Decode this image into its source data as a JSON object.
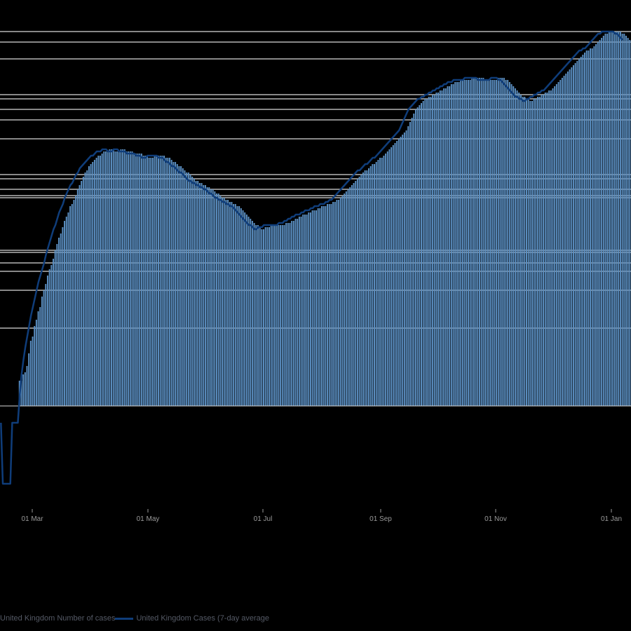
{
  "chart_data": {
    "type": "bar",
    "title": "",
    "xlabel": "",
    "ylabel": "",
    "x_ticks": [
      "01 Mar",
      "01 May",
      "01 Jul",
      "01 Sep",
      "01 Nov",
      "01 Jan"
    ],
    "bar_color": "#5b8fc2",
    "line_color": "#0f3d7a",
    "grid_color": "#d9d9d9",
    "series": [
      {
        "name": "United Kingdom Number of cases",
        "type": "bar",
        "values": [
          0,
          0,
          0,
          0,
          0,
          0,
          0,
          0,
          0,
          0,
          12,
          12,
          15,
          16,
          19,
          25,
          31,
          33,
          38,
          41,
          45,
          47,
          52,
          55,
          58,
          62,
          65,
          67,
          70,
          74,
          77,
          80,
          82,
          85,
          88,
          90,
          92,
          95,
          96,
          98,
          100,
          103,
          105,
          107,
          109,
          111,
          112,
          114,
          115,
          116,
          117,
          118,
          119,
          119,
          120,
          121,
          121,
          121,
          122,
          122,
          122,
          121,
          121,
          121,
          122,
          122,
          122,
          121,
          121,
          121,
          121,
          120,
          120,
          120,
          120,
          120,
          119,
          119,
          119,
          118,
          118,
          118,
          119,
          119,
          119,
          119,
          119,
          119,
          118,
          118,
          118,
          117,
          116,
          116,
          115,
          114,
          114,
          113,
          112,
          111,
          111,
          110,
          109,
          108,
          107,
          107,
          106,
          106,
          105,
          105,
          104,
          104,
          103,
          103,
          102,
          101,
          101,
          100,
          99,
          99,
          98,
          98,
          97,
          97,
          96,
          96,
          95,
          95,
          94,
          93,
          92,
          91,
          90,
          89,
          88,
          87,
          86,
          86,
          85,
          84,
          84,
          85,
          85,
          85,
          86,
          86,
          86,
          86,
          86,
          86,
          86,
          86,
          87,
          87,
          87,
          88,
          88,
          89,
          89,
          90,
          90,
          91,
          91,
          91,
          92,
          92,
          93,
          93,
          93,
          94,
          94,
          95,
          95,
          95,
          96,
          96,
          96,
          97,
          97,
          98,
          98,
          99,
          100,
          101,
          102,
          103,
          104,
          105,
          106,
          107,
          108,
          109,
          110,
          111,
          112,
          112,
          113,
          114,
          115,
          115,
          116,
          117,
          118,
          118,
          119,
          120,
          121,
          122,
          123,
          124,
          125,
          126,
          127,
          128,
          129,
          130,
          131,
          133,
          135,
          137,
          139,
          141,
          142,
          143,
          144,
          145,
          146,
          146,
          147,
          147,
          148,
          148,
          149,
          149,
          150,
          150,
          151,
          151,
          152,
          152,
          153,
          153,
          154,
          154,
          154,
          155,
          155,
          155,
          155,
          155,
          155,
          156,
          156,
          156,
          156,
          156,
          156,
          156,
          155,
          155,
          155,
          155,
          155,
          155,
          155,
          156,
          156,
          156,
          156,
          155,
          155,
          154,
          153,
          152,
          151,
          150,
          149,
          148,
          147,
          147,
          146,
          146,
          145,
          145,
          146,
          146,
          147,
          147,
          148,
          148,
          149,
          149,
          150,
          150,
          151,
          152,
          153,
          154,
          155,
          156,
          157,
          158,
          159,
          160,
          161,
          162,
          163,
          164,
          165,
          166,
          167,
          168,
          169,
          169,
          170,
          170,
          171,
          172,
          173,
          174,
          175,
          176,
          177,
          177,
          178,
          178,
          178,
          178,
          178,
          178,
          178,
          177,
          177,
          176,
          175,
          174
        ]
      },
      {
        "name": "United Kingdom Cases (7-day average",
        "type": "line",
        "values": [
          -8,
          -37,
          -37,
          -37,
          -37,
          -37,
          -8,
          -8,
          -8,
          -8,
          5,
          15,
          22,
          28,
          33,
          38,
          43,
          47,
          51,
          55,
          59,
          62,
          65,
          68,
          72,
          75,
          78,
          81,
          84,
          86,
          89,
          92,
          94,
          96,
          99,
          101,
          103,
          105,
          106,
          108,
          110,
          111,
          113,
          114,
          115,
          116,
          117,
          118,
          119,
          119,
          120,
          121,
          121,
          121,
          122,
          122,
          122,
          121,
          121,
          121,
          122,
          122,
          122,
          121,
          121,
          121,
          121,
          120,
          120,
          120,
          120,
          120,
          119,
          119,
          119,
          118,
          118,
          118,
          119,
          119,
          119,
          119,
          119,
          119,
          118,
          118,
          118,
          117,
          116,
          116,
          115,
          114,
          114,
          113,
          112,
          111,
          111,
          110,
          109,
          108,
          107,
          107,
          106,
          106,
          105,
          105,
          104,
          104,
          103,
          103,
          102,
          101,
          101,
          100,
          99,
          99,
          98,
          98,
          97,
          97,
          96,
          96,
          95,
          95,
          94,
          93,
          92,
          91,
          90,
          89,
          88,
          87,
          86,
          86,
          85,
          84,
          84,
          85,
          85,
          85,
          86,
          86,
          86,
          86,
          86,
          86,
          86,
          86,
          87,
          87,
          87,
          88,
          88,
          89,
          89,
          90,
          90,
          91,
          91,
          91,
          92,
          92,
          93,
          93,
          93,
          94,
          94,
          95,
          95,
          95,
          96,
          96,
          96,
          97,
          97,
          98,
          98,
          99,
          100,
          101,
          102,
          103,
          104,
          105,
          106,
          107,
          108,
          109,
          110,
          111,
          112,
          112,
          113,
          114,
          115,
          115,
          116,
          117,
          118,
          118,
          119,
          120,
          121,
          122,
          123,
          124,
          125,
          126,
          127,
          128,
          129,
          130,
          131,
          133,
          135,
          137,
          139,
          141,
          142,
          143,
          144,
          145,
          146,
          146,
          147,
          147,
          148,
          148,
          149,
          149,
          150,
          150,
          151,
          151,
          152,
          152,
          153,
          153,
          154,
          154,
          154,
          155,
          155,
          155,
          155,
          155,
          155,
          156,
          156,
          156,
          156,
          156,
          156,
          156,
          155,
          155,
          155,
          155,
          155,
          155,
          155,
          156,
          156,
          156,
          156,
          155,
          155,
          154,
          153,
          152,
          151,
          150,
          149,
          148,
          147,
          147,
          146,
          146,
          145,
          145,
          146,
          146,
          147,
          147,
          148,
          148,
          149,
          149,
          150,
          150,
          151,
          152,
          153,
          154,
          155,
          156,
          157,
          158,
          159,
          160,
          161,
          162,
          163,
          164,
          165,
          166,
          167,
          168,
          169,
          169,
          170,
          170,
          171,
          172,
          173,
          174,
          175,
          176,
          177,
          177,
          178,
          178,
          178,
          178,
          178,
          178,
          178,
          177,
          177,
          176,
          175,
          174
        ]
      }
    ],
    "gridlines": [
      178,
      173,
      165,
      148,
      146,
      141,
      136,
      127,
      110,
      108,
      103,
      100,
      99,
      74,
      73,
      68,
      64,
      55,
      37
    ],
    "grid": true,
    "legend_position": "bottom-left"
  }
}
